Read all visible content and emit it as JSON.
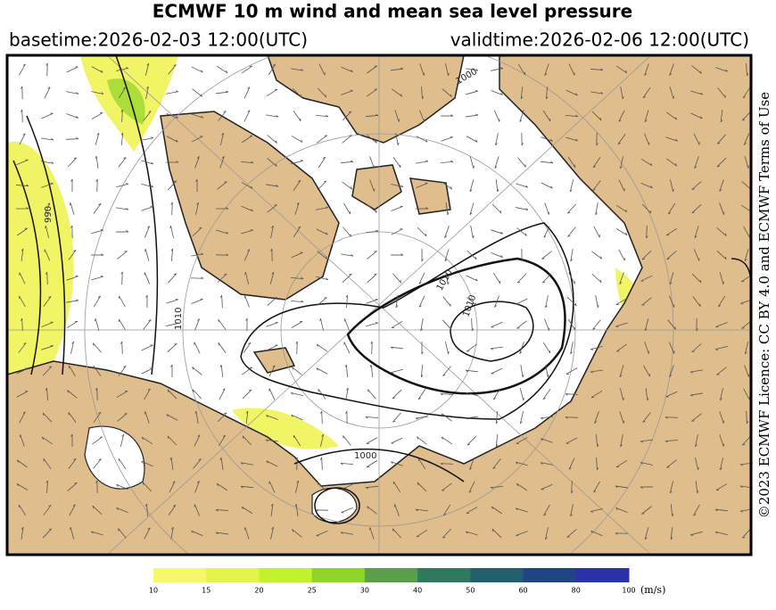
{
  "header": {
    "title": "ECMWF 10 m wind and mean sea level pressure",
    "basetime": "basetime:2026-02-03 12:00(UTC)",
    "validtime": "validtime:2026-02-06 12:00(UTC)"
  },
  "credit": "©2023 ECMWF Licence: CC BY 4.0 and ECMWF Terms of Use",
  "map": {
    "isobar_labels": [
      "1000",
      "1010",
      "1010",
      "1010",
      "990",
      "1000"
    ]
  },
  "colorbar": {
    "ticks": [
      10,
      15,
      20,
      25,
      30,
      40,
      50,
      60,
      80,
      100
    ],
    "unit": "(m/s)",
    "colors": [
      "#f7f76a",
      "#e4f54a",
      "#c2f22c",
      "#8fd42a",
      "#5a9e4a",
      "#2f7a5c",
      "#22606e",
      "#1f4585",
      "#2a32a8"
    ]
  }
}
